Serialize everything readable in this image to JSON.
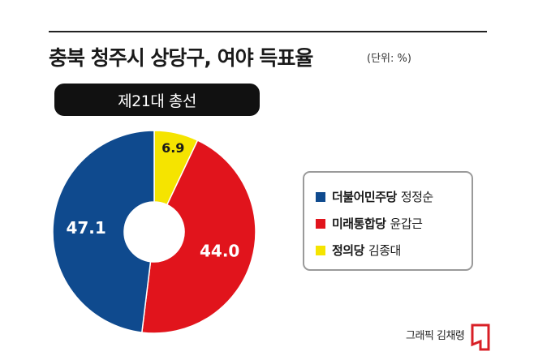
{
  "header": {
    "title": "충북 청주시 상당구, 여야 득표율",
    "unit": "(단위: %)"
  },
  "subtitle_pill": "제21대 총선",
  "chart_data": {
    "type": "pie",
    "donut": true,
    "start_angle_deg": 0,
    "direction": "clockwise",
    "series": [
      {
        "party": "정의당",
        "candidate": "김종대",
        "value": 6.9,
        "label": "6.9",
        "color": "#f5e400",
        "label_color": "#1a1a1a"
      },
      {
        "party": "미래통합당",
        "candidate": "윤갑근",
        "value": 44.0,
        "label": "44.0",
        "color": "#e1141c",
        "label_color": "#ffffff"
      },
      {
        "party": "더불어민주당",
        "candidate": "정정순",
        "value": 47.1,
        "label": "47.1",
        "color": "#0f4a8e",
        "label_color": "#ffffff"
      }
    ]
  },
  "legend": [
    {
      "party": "더불어민주당",
      "candidate": "정정순",
      "color": "#0f4a8e"
    },
    {
      "party": "미래통합당",
      "candidate": "윤갑근",
      "color": "#e1141c"
    },
    {
      "party": "정의당",
      "candidate": "김종대",
      "color": "#f5e400"
    }
  ],
  "footer": {
    "credit": "그래픽 김채령",
    "logo_color": "#d81f26"
  }
}
